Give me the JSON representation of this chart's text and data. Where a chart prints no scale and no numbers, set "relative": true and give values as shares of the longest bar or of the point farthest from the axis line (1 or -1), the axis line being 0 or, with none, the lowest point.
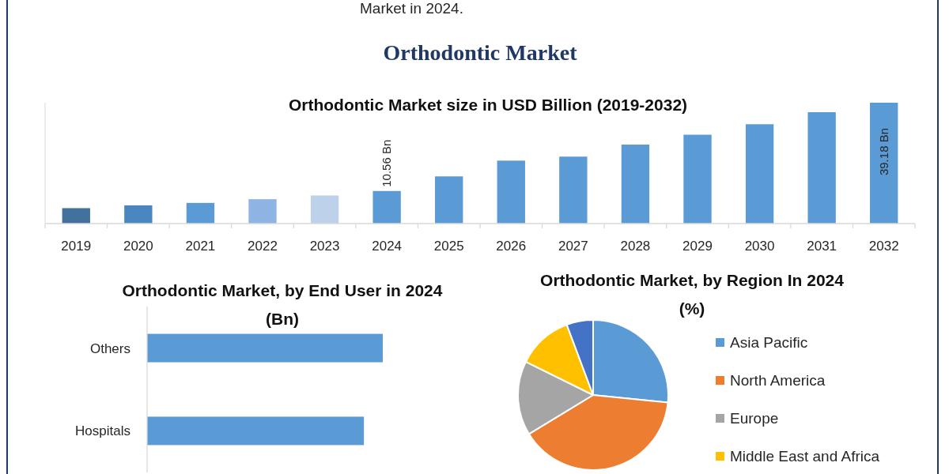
{
  "chart_data": [
    {
      "type": "other",
      "title": "Orthodontic Market",
      "annotations": [
        "Market in 2024."
      ]
    },
    {
      "type": "bar",
      "title": "Orthodontic Market size in USD Billion (2019-2032)",
      "categories": [
        "2019",
        "2020",
        "2021",
        "2022",
        "2023",
        "2024",
        "2025",
        "2026",
        "2027",
        "2028",
        "2029",
        "2030",
        "2031",
        "2032"
      ],
      "values": [
        5.0,
        5.9,
        6.7,
        7.9,
        9.1,
        10.56,
        15.3,
        20.4,
        21.7,
        25.6,
        28.8,
        32.2,
        36.1,
        39.18
      ],
      "colors": [
        "#41719c",
        "#4a86c0",
        "#5b9bd5",
        "#8eb4e3",
        "#bdd1ea",
        "#5b9bd5",
        "#5b9bd5",
        "#5b9bd5",
        "#5b9bd5",
        "#5b9bd5",
        "#5b9bd5",
        "#5b9bd5",
        "#5b9bd5",
        "#5b9bd5"
      ],
      "value_labels": [
        null,
        null,
        null,
        null,
        null,
        "10.56 Bn",
        null,
        null,
        null,
        null,
        null,
        null,
        null,
        "39.18 Bn"
      ]
    },
    {
      "type": "bar",
      "orientation": "horizontal",
      "relative": true,
      "title": "Orthodontic Market, by End User in 2024 (Bn)",
      "categories": [
        "Others",
        "Hospitals"
      ],
      "values": [
        1,
        0.92
      ],
      "color": "#5b9bd5"
    },
    {
      "type": "pie",
      "title": "Orthodontic Market, by Region In 2024 (%)",
      "categories": [
        "Asia Pacific",
        "North America",
        "Europe",
        "Middle East and Africa",
        null
      ],
      "values": [
        26.6,
        39.7,
        16.0,
        12.0,
        5.7
      ],
      "colors": [
        "#5b9bd5",
        "#ed7d31",
        "#a5a5a5",
        "#ffc000",
        "#4472c4"
      ],
      "legend": "right"
    }
  ]
}
